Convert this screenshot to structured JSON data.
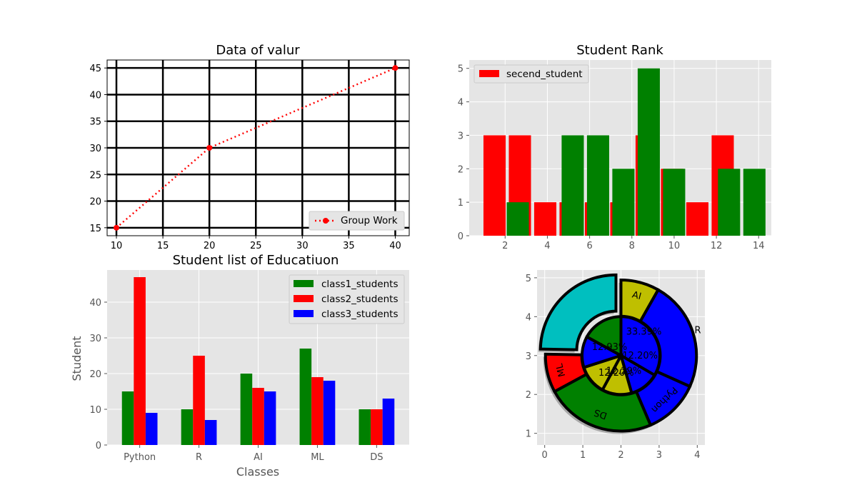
{
  "chart_data": [
    {
      "type": "line",
      "title": "Data of valur",
      "xlabel": "",
      "ylabel": "",
      "x": [
        10,
        20,
        40
      ],
      "y": [
        15,
        30,
        45
      ],
      "xlim": [
        9,
        41.5
      ],
      "ylim": [
        13.5,
        46.5
      ],
      "xticks": [
        10,
        15,
        20,
        25,
        30,
        35,
        40
      ],
      "yticks": [
        15,
        20,
        25,
        30,
        35,
        40,
        45
      ],
      "series": [
        {
          "name": "Group Work",
          "color": "#ff0000",
          "linestyle": "dotted",
          "marker": "o"
        }
      ],
      "grid": true,
      "grid_color": "#000000",
      "legend_placement": "lower-right"
    },
    {
      "type": "bar",
      "title": "Student Rank",
      "xlabel": "",
      "ylabel": "",
      "xlim": [
        0.3,
        14.6
      ],
      "ylim": [
        0,
        5.25
      ],
      "xticks": [
        2,
        4,
        6,
        8,
        10,
        12,
        14
      ],
      "yticks": [
        0,
        1,
        2,
        3,
        4,
        5
      ],
      "bar_width": 1.05,
      "series": [
        {
          "name": "secend_student",
          "color": "#ff0000",
          "x": [
            1.5,
            2.7,
            3.9,
            5.1,
            6.3,
            7.5,
            8.7,
            9.9,
            11.1,
            12.3
          ],
          "values": [
            3,
            3,
            1,
            1,
            1,
            1,
            3,
            2,
            1,
            3
          ]
        },
        {
          "name": "",
          "color": "#008000",
          "x": [
            2.6,
            5.2,
            6.4,
            7.6,
            8.8,
            10.0,
            12.6,
            13.8
          ],
          "values": [
            1,
            3,
            3,
            2,
            5,
            2,
            2,
            2
          ]
        }
      ],
      "legend_placement": "upper-left"
    },
    {
      "type": "bar",
      "title": "Student list of Educatiuon",
      "xlabel": "Classes",
      "ylabel": "Student",
      "categories": [
        "Python",
        "R",
        "AI",
        "ML",
        "DS"
      ],
      "ylim": [
        0,
        49
      ],
      "yticks": [
        0,
        10,
        20,
        30,
        40
      ],
      "series": [
        {
          "name": "class1_students",
          "color": "#008000",
          "values": [
            15,
            10,
            20,
            27,
            10
          ]
        },
        {
          "name": "class2_students",
          "color": "#ff0000",
          "values": [
            47,
            25,
            16,
            19,
            10
          ]
        },
        {
          "name": "class3_students",
          "color": "#0000ff",
          "values": [
            9,
            7,
            15,
            18,
            13
          ]
        }
      ],
      "legend_placement": "upper-right"
    },
    {
      "type": "pie",
      "title": "",
      "xlim": [
        -0.2,
        4.2
      ],
      "ylim": [
        0.7,
        5.2
      ],
      "xticks": [
        0,
        1,
        2,
        3,
        4
      ],
      "yticks": [
        1,
        2,
        3,
        4,
        5
      ],
      "outer_ring": {
        "labels": [
          "AI",
          "R",
          "Python",
          "DS",
          "ML",
          ""
        ],
        "values": [
          8.2,
          23.5,
          11.9,
          23.5,
          8.2,
          24.7
        ],
        "colors": [
          "#bfbf00",
          "#0000ff",
          "#0000ff",
          "#008000",
          "#ff0000",
          "#00bfbf"
        ]
      },
      "inner_pie": {
        "labels": [
          "33.39%",
          "12.20%",
          "12.29%",
          "12.20%",
          "12.93%",
          ""
        ],
        "values": [
          33.39,
          12.2,
          12.29,
          12.2,
          12.93,
          17.0
        ],
        "colors": [
          "#0000ff",
          "#0000ff",
          "#bfbf00",
          "#bfbf00",
          "#0000ff",
          "#008000"
        ]
      },
      "edge_color": "#000000",
      "shadow": true
    }
  ]
}
